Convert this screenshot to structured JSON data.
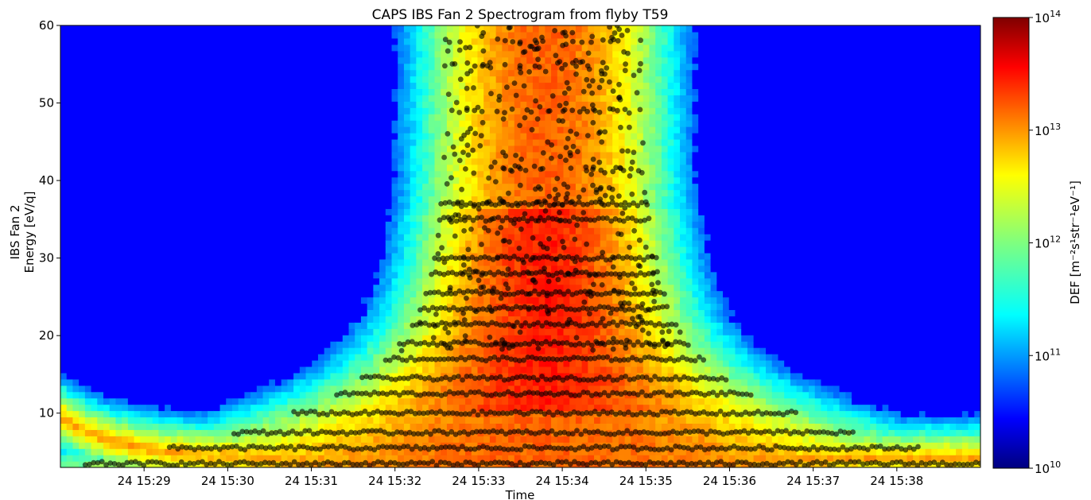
{
  "chart_data": {
    "type": "heatmap",
    "title": "CAPS IBS Fan 2 Spectrogram from flyby T59",
    "xlabel": "Time",
    "ylabel_line1": "IBS Fan 2",
    "ylabel_line2": "Energy [eV/q]",
    "x_ticks": [
      "24 15:29",
      "24 15:30",
      "24 15:31",
      "24 15:32",
      "24 15:33",
      "24 15:34",
      "24 15:35",
      "24 15:36",
      "24 15:37",
      "24 15:38"
    ],
    "x_tick_times_min": [
      29,
      30,
      31,
      32,
      33,
      34,
      35,
      36,
      37,
      38
    ],
    "x_range_min": [
      28.0,
      39.0
    ],
    "ylim": [
      3,
      60
    ],
    "y_ticks": [
      "10",
      "20",
      "30",
      "40",
      "50",
      "60"
    ],
    "y_tick_values": [
      10,
      20,
      30,
      40,
      50,
      60
    ],
    "colorbar": {
      "label": "DEF [m⁻²s¹str⁻¹eV⁻¹]",
      "scale": "log",
      "range": [
        10000000000.0,
        100000000000000.0
      ],
      "tick_base": "10",
      "tick_exponents": [
        "10",
        "11",
        "12",
        "13",
        "14"
      ],
      "colormap": "jet"
    },
    "peak_markers": {
      "color": "#000000",
      "description_levels_eV": [
        3.5,
        5.5,
        7.5,
        10,
        12.5,
        14.5,
        17,
        19,
        21.5,
        23.5,
        25.5,
        28,
        30,
        35,
        37,
        41.5,
        49,
        55,
        58
      ]
    }
  }
}
